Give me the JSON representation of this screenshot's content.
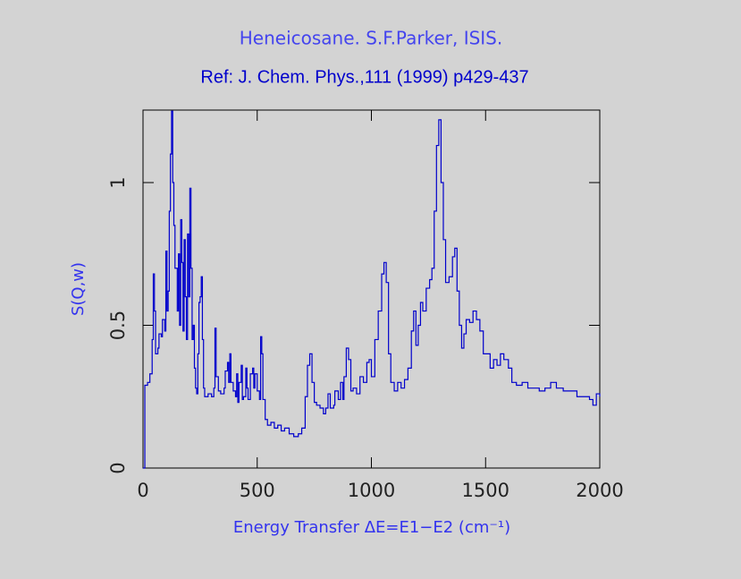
{
  "chart_data": {
    "type": "line",
    "drawstyle": "steps",
    "title": "Heneicosane. S.F.Parker, ISIS.",
    "subtitle": "Ref: J. Chem. Phys.,111 (1999) p429-437",
    "x_label": "Energy Transfer ΔE=E1−E2 (cm⁻¹)",
    "y_label": "S(Q,w)",
    "xlim": [
      0,
      2000
    ],
    "ylim": [
      0,
      1.254
    ],
    "xticks": [
      0,
      500,
      1000,
      1500,
      2000
    ],
    "yticks": [
      0,
      0.5,
      1
    ],
    "color": "#0000cc",
    "x": [
      0,
      8,
      20,
      30,
      40,
      45,
      50,
      55,
      65,
      70,
      80,
      85,
      95,
      100,
      105,
      110,
      115,
      120,
      125,
      130,
      135,
      140,
      150,
      155,
      160,
      165,
      170,
      175,
      180,
      185,
      190,
      195,
      200,
      205,
      210,
      215,
      220,
      225,
      230,
      235,
      240,
      245,
      250,
      255,
      260,
      265,
      270,
      285,
      300,
      310,
      315,
      320,
      330,
      340,
      355,
      360,
      370,
      375,
      380,
      385,
      395,
      405,
      410,
      415,
      420,
      430,
      435,
      440,
      450,
      455,
      460,
      470,
      480,
      485,
      490,
      500,
      510,
      515,
      520,
      525,
      535,
      545,
      560,
      575,
      590,
      605,
      620,
      640,
      660,
      680,
      695,
      710,
      720,
      730,
      740,
      750,
      760,
      775,
      790,
      800,
      810,
      820,
      835,
      840,
      855,
      865,
      875,
      880,
      890,
      900,
      910,
      920,
      935,
      950,
      965,
      980,
      990,
      1000,
      1015,
      1030,
      1045,
      1055,
      1065,
      1075,
      1085,
      1100,
      1115,
      1130,
      1145,
      1160,
      1175,
      1185,
      1195,
      1205,
      1215,
      1225,
      1240,
      1255,
      1265,
      1275,
      1285,
      1295,
      1305,
      1315,
      1325,
      1340,
      1355,
      1365,
      1375,
      1385,
      1395,
      1405,
      1415,
      1430,
      1445,
      1460,
      1475,
      1490,
      1505,
      1520,
      1535,
      1550,
      1565,
      1580,
      1600,
      1615,
      1635,
      1660,
      1685,
      1710,
      1735,
      1760,
      1785,
      1810,
      1840,
      1870,
      1900,
      1930,
      1955,
      1970,
      1985,
      2000
    ],
    "values": [
      0,
      0.29,
      0.3,
      0.33,
      0.45,
      0.68,
      0.55,
      0.4,
      0.42,
      0.47,
      0.46,
      0.52,
      0.48,
      0.76,
      0.55,
      0.62,
      0.9,
      1.1,
      1.25,
      1.0,
      0.85,
      0.7,
      0.55,
      0.75,
      0.5,
      0.87,
      0.72,
      0.48,
      0.8,
      0.6,
      0.45,
      0.82,
      0.6,
      0.98,
      0.7,
      0.45,
      0.5,
      0.35,
      0.28,
      0.26,
      0.4,
      0.58,
      0.6,
      0.67,
      0.45,
      0.28,
      0.25,
      0.26,
      0.25,
      0.28,
      0.49,
      0.32,
      0.27,
      0.26,
      0.28,
      0.34,
      0.37,
      0.3,
      0.4,
      0.3,
      0.27,
      0.25,
      0.33,
      0.23,
      0.3,
      0.36,
      0.24,
      0.25,
      0.35,
      0.28,
      0.24,
      0.33,
      0.35,
      0.28,
      0.33,
      0.27,
      0.24,
      0.46,
      0.4,
      0.24,
      0.17,
      0.15,
      0.16,
      0.14,
      0.15,
      0.13,
      0.14,
      0.12,
      0.11,
      0.12,
      0.14,
      0.25,
      0.36,
      0.4,
      0.3,
      0.23,
      0.22,
      0.21,
      0.19,
      0.21,
      0.26,
      0.21,
      0.22,
      0.27,
      0.24,
      0.3,
      0.24,
      0.32,
      0.42,
      0.38,
      0.27,
      0.28,
      0.26,
      0.32,
      0.3,
      0.37,
      0.38,
      0.32,
      0.45,
      0.55,
      0.68,
      0.72,
      0.65,
      0.4,
      0.3,
      0.27,
      0.3,
      0.28,
      0.31,
      0.35,
      0.48,
      0.55,
      0.43,
      0.5,
      0.58,
      0.55,
      0.63,
      0.66,
      0.7,
      0.9,
      1.13,
      1.22,
      1.0,
      0.8,
      0.65,
      0.67,
      0.74,
      0.77,
      0.62,
      0.5,
      0.42,
      0.47,
      0.52,
      0.51,
      0.55,
      0.52,
      0.48,
      0.4,
      0.4,
      0.35,
      0.38,
      0.36,
      0.4,
      0.38,
      0.35,
      0.3,
      0.29,
      0.3,
      0.28,
      0.28,
      0.27,
      0.28,
      0.3,
      0.28,
      0.27,
      0.27,
      0.25,
      0.25,
      0.24,
      0.22,
      0.26,
      0.25
    ]
  }
}
